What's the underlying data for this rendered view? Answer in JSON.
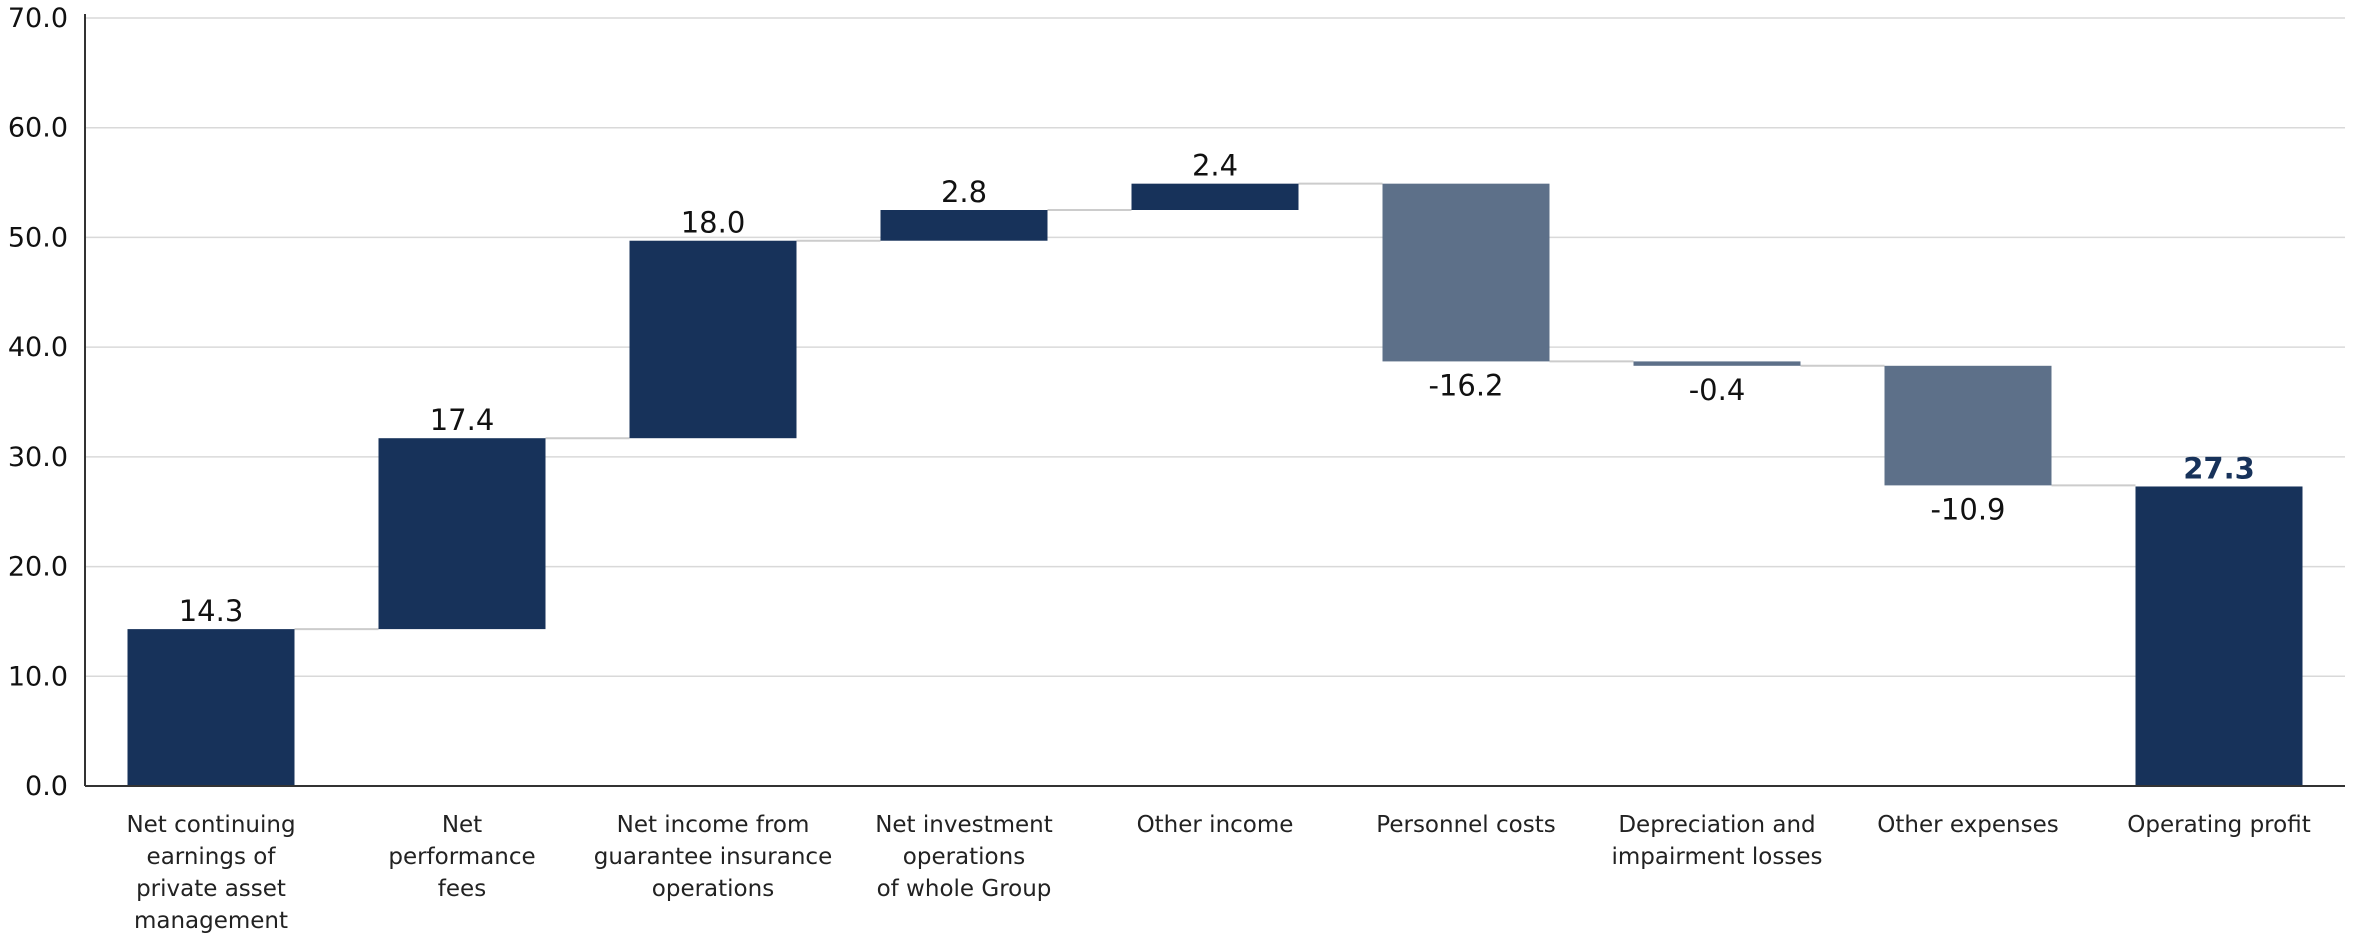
{
  "chart_data": {
    "type": "waterfall",
    "title": "",
    "xlabel": "",
    "ylabel": "",
    "ylim": [
      0,
      70
    ],
    "ytick_step": 10,
    "ytick_decimals": 1,
    "grid": true,
    "categories": [
      [
        "Net continuing",
        "earnings of",
        "private asset",
        "management"
      ],
      [
        "Net",
        "performance",
        "fees"
      ],
      [
        "Net income from",
        "guarantee insurance",
        "operations"
      ],
      [
        "Net investment",
        "operations",
        "of whole Group"
      ],
      [
        "Other income"
      ],
      [
        "Personnel costs"
      ],
      [
        "Depreciation and",
        "impairment losses"
      ],
      [
        "Other expenses"
      ],
      [
        "Operating profit"
      ]
    ],
    "values": [
      14.3,
      17.4,
      18.0,
      2.8,
      2.4,
      -16.2,
      -0.4,
      -10.9,
      27.3
    ],
    "value_labels": [
      "14.3",
      "17.4",
      "18.0",
      "2.8",
      "2.4",
      "-16.2",
      "-0.4",
      "-10.9",
      "27.3"
    ],
    "is_total": [
      false,
      false,
      false,
      false,
      false,
      false,
      false,
      false,
      true
    ],
    "colors": {
      "positive": "#17325a",
      "negative": "#5d7089",
      "total": "#17325a",
      "total_label": "#17325a",
      "connector": "#cccccc",
      "grid": "#d9d9d9",
      "axis": "#333333"
    }
  }
}
